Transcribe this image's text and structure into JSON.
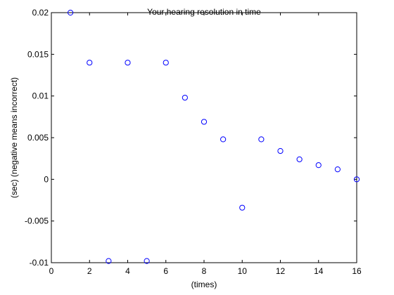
{
  "chart_data": {
    "type": "scatter",
    "title": "Your hearing resolution in time",
    "xlabel": "(times)",
    "ylabel": "(sec) (negative means incorrect)",
    "xlim": [
      0,
      16
    ],
    "ylim": [
      -0.01,
      0.02
    ],
    "x_ticks": [
      "0",
      "2",
      "4",
      "6",
      "8",
      "10",
      "12",
      "14",
      "16"
    ],
    "y_ticks": [
      "-0.01",
      "-0.005",
      "0",
      "0.005",
      "0.01",
      "0.015",
      "0.02"
    ],
    "grid": false,
    "marker": "open-circle",
    "marker_color": "#0000ff",
    "series": [
      {
        "x": [
          1,
          2,
          3,
          4,
          5,
          6,
          7,
          8,
          9,
          10,
          11,
          12,
          13,
          14,
          15,
          16
        ],
        "y": [
          0.02,
          0.014,
          -0.0098,
          0.014,
          -0.0098,
          0.014,
          0.0098,
          0.0069,
          0.0048,
          -0.0034,
          0.0048,
          0.0034,
          0.0024,
          0.0017,
          0.0012,
          0.0
        ]
      }
    ]
  }
}
